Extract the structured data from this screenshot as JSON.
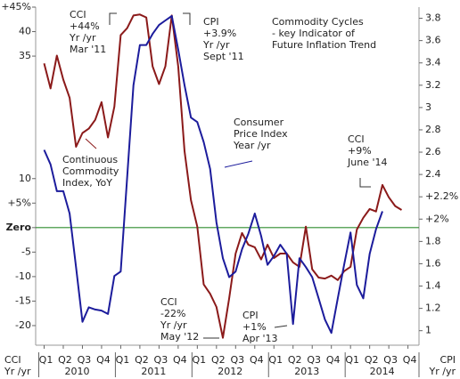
{
  "chart_data": {
    "type": "line",
    "title_lines": [
      "Commodity Cycles",
      "- key Indicator of",
      "Future Inflation Trend"
    ],
    "categories": [
      "Q1",
      null,
      null,
      "Q2",
      null,
      null,
      "Q3",
      null,
      null,
      "Q4",
      null,
      null,
      "Q1",
      null,
      null,
      "Q2",
      null,
      null,
      "Q3",
      null,
      null,
      "Q4",
      null,
      null,
      "Q1",
      null,
      null,
      "Q2",
      null,
      null,
      "Q3",
      null,
      null,
      "Q4",
      null,
      null,
      "Q1",
      null,
      null,
      "Q2",
      null,
      null,
      "Q3",
      null,
      null,
      "Q4",
      null,
      null,
      "Q1",
      null,
      null,
      "Q2",
      null,
      null,
      "Q3",
      null,
      null,
      "Q4"
    ],
    "years": [
      "2010",
      "2011",
      "2012",
      "2013",
      "2014"
    ],
    "ylabel_lines": [
      "CCI",
      "Yr /yr"
    ],
    "y2label_lines": [
      "CPI",
      "Yr /yr"
    ],
    "ylim": [
      -24,
      45
    ],
    "yticks": [
      {
        "value": 45,
        "label": "+45%"
      },
      40,
      35,
      10,
      {
        "value": 5,
        "label": "+5%"
      },
      {
        "value": 0,
        "label": "Zero"
      },
      -5,
      -10,
      -15,
      -20
    ],
    "y2lim": [
      0.87,
      3.9
    ],
    "y2ticks": [
      3.8,
      3.6,
      3.4,
      3.2,
      3,
      2.8,
      2.6,
      2.4,
      {
        "value": 2.2,
        "label": "+2.2%"
      },
      {
        "value": 2,
        "label": "+2%"
      },
      1.8,
      1.6,
      1.4,
      1.2,
      1
    ],
    "zero_line_color": "#2e8b2e",
    "series": [
      {
        "label_lines": [
          "Continuous",
          "Commodity",
          "Index, YoY"
        ],
        "color": "#8b1a1a",
        "values": [
          33.5,
          28.4,
          35.1,
          30.2,
          26.5,
          16.5,
          19.3,
          20.2,
          22,
          25.6,
          18.4,
          24.7,
          39.3,
          40.7,
          43.3,
          43.5,
          42.9,
          32.9,
          29.3,
          32.9,
          43.3,
          32.9,
          15.6,
          5.6,
          0.2,
          -11.6,
          -13.5,
          -16.2,
          -22.5,
          -14.4,
          -5.3,
          -1.1,
          -3.5,
          -4,
          -6.5,
          -3.5,
          -6.2,
          -5.3,
          -5.3,
          -7.1,
          -8,
          0.2,
          -8.5,
          -10.2,
          -10.4,
          -9.8,
          -10.7,
          -8.9,
          -8,
          -0.4,
          2,
          3.8,
          3.3,
          8.7,
          6.2,
          4.4,
          3.6,
          null
        ]
      },
      {
        "label_lines": [
          "Consumer",
          "Price Index",
          "Year /yr"
        ],
        "color": "#1c1c9c",
        "axis": "y2",
        "values": [
          2.62,
          2.49,
          2.25,
          2.25,
          2.05,
          1.57,
          1.08,
          1.21,
          1.19,
          1.18,
          1.15,
          1.49,
          1.53,
          2.37,
          3.2,
          3.56,
          3.56,
          3.66,
          3.74,
          3.78,
          3.82,
          3.52,
          3.2,
          2.91,
          2.87,
          2.69,
          2.45,
          1.97,
          1.65,
          1.48,
          1.53,
          1.73,
          1.87,
          2.05,
          1.85,
          1.59,
          1.67,
          1.77,
          1.69,
          1.06,
          1.65,
          1.57,
          1.48,
          1.29,
          1.1,
          0.98,
          1.29,
          1.59,
          1.88,
          1.41,
          1.29,
          1.69,
          1.91,
          2.07,
          null,
          null,
          null,
          null
        ]
      }
    ],
    "annotations": [
      {
        "lines": [
          "CCI",
          "+44%",
          "Yr /yr",
          "Mar '11"
        ],
        "color": "#222222"
      },
      {
        "lines": [
          "CPI",
          "+3.9%",
          "Yr /yr",
          "Sept '11"
        ],
        "color": "#222222"
      },
      {
        "lines": [
          "CCI",
          "+9%",
          "June '14"
        ],
        "color": "#222222"
      },
      {
        "lines": [
          "CCI",
          "-22%",
          "Yr /yr",
          "May '12"
        ],
        "color": "#222222"
      },
      {
        "lines": [
          "CPI",
          "+1%",
          "Apr '13"
        ],
        "color": "#222222"
      }
    ]
  }
}
